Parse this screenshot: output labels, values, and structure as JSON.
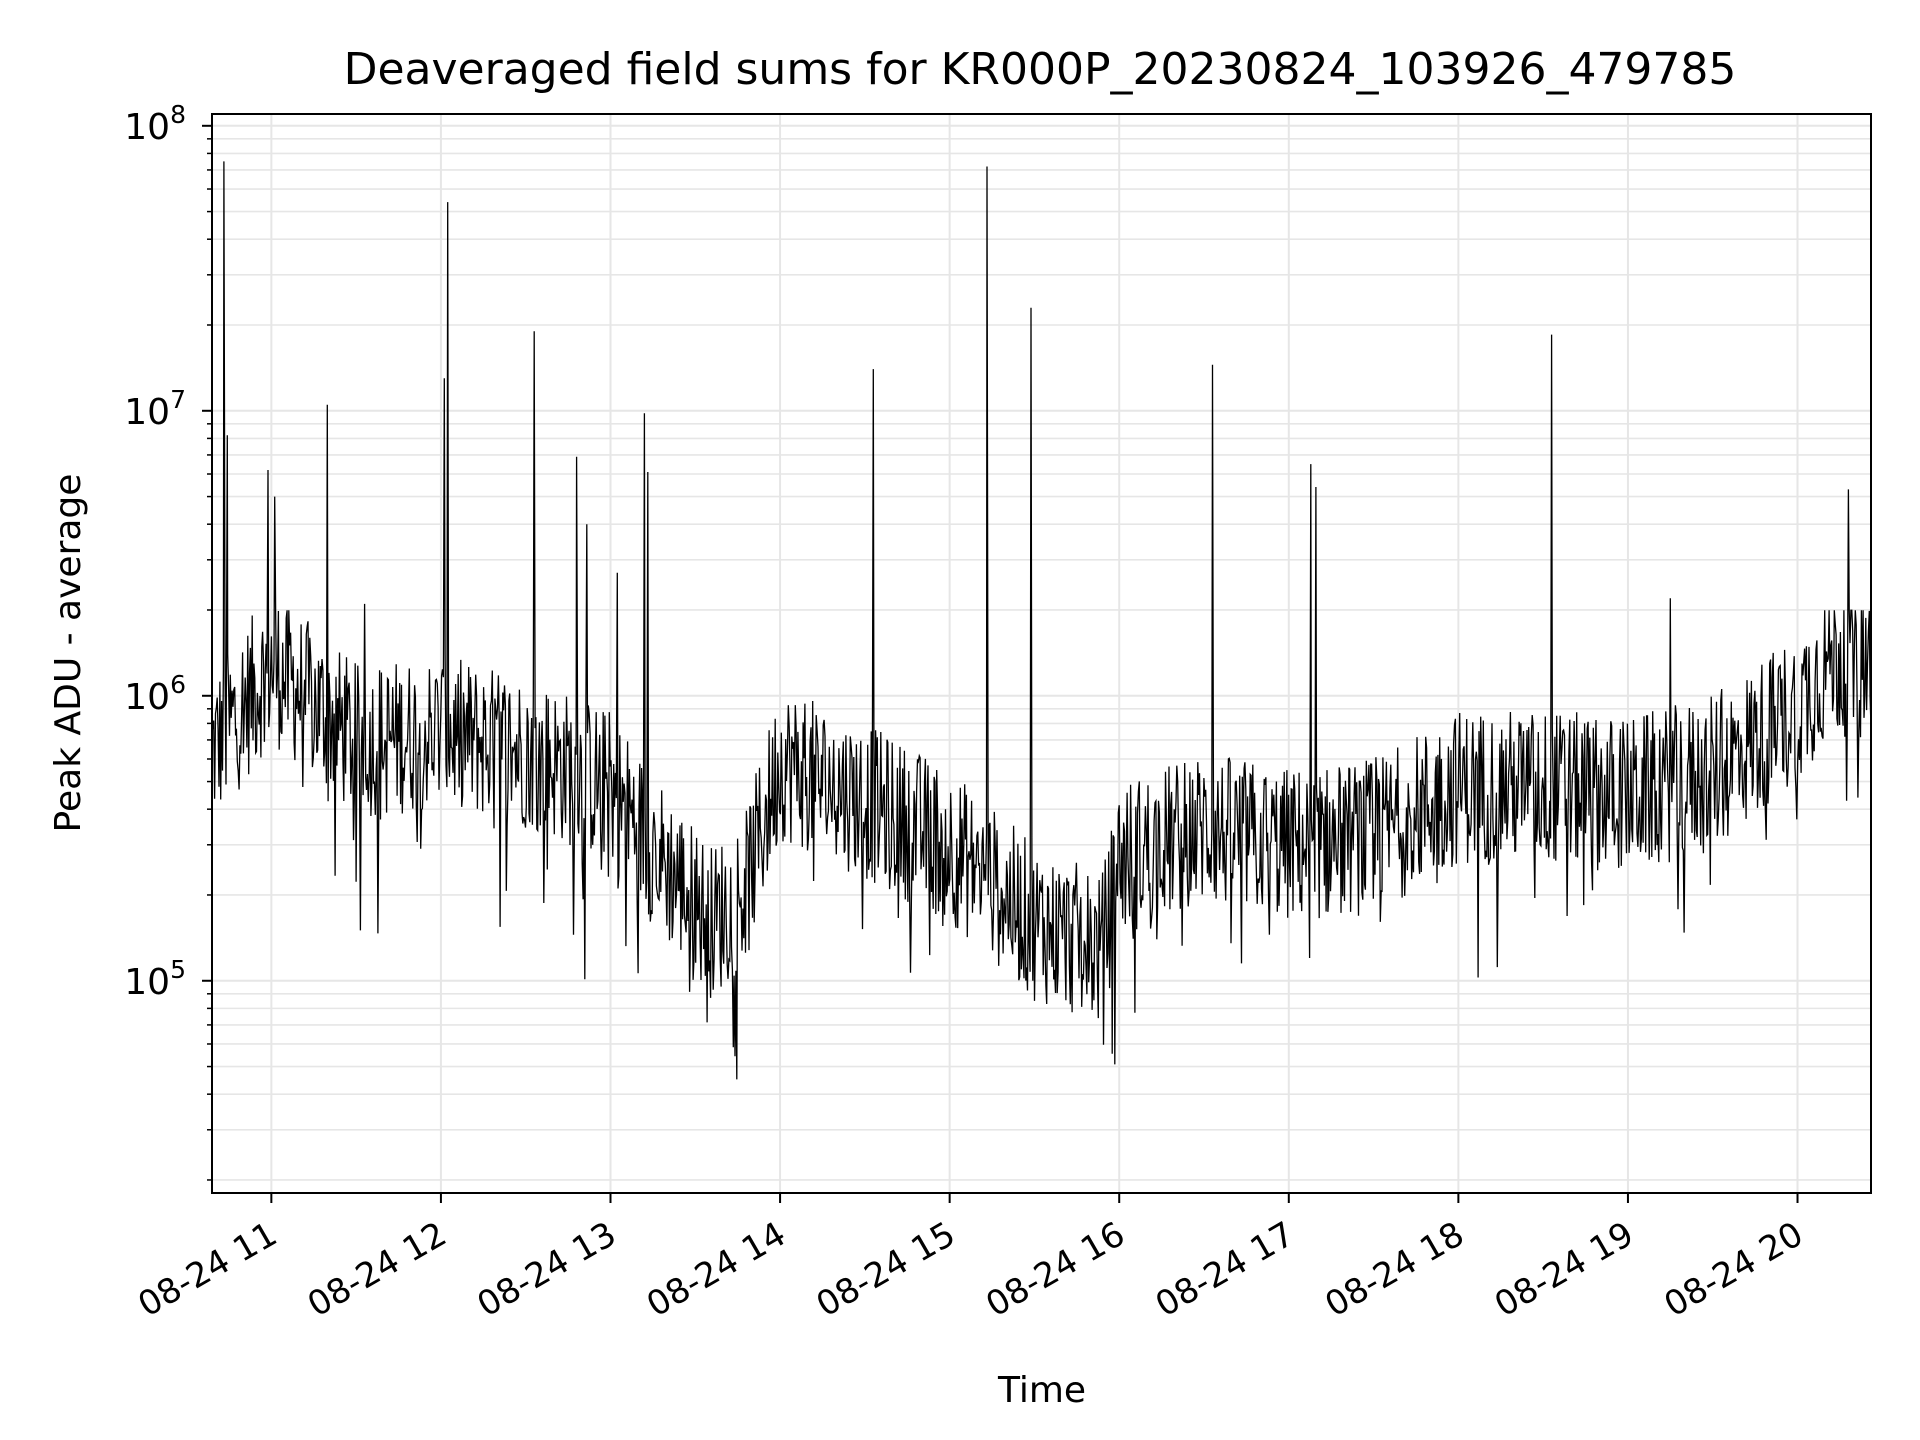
{
  "chart_data": {
    "type": "line",
    "title": "Deaveraged field sums for KR000P_20230824_103926_479785",
    "xlabel": "Time",
    "ylabel": "Peak ADU - average",
    "yscale": "log",
    "ylim": [
      18000,
      110000000
    ],
    "xlim": [
      "08-24 10:39",
      "08-24 20:26"
    ],
    "grid": "both (major and minor), light gray",
    "line_color": "#000000",
    "x_ticks": [
      "08-24 11",
      "08-24 12",
      "08-24 13",
      "08-24 14",
      "08-24 15",
      "08-24 16",
      "08-24 17",
      "08-24 18",
      "08-24 19",
      "08-24 20"
    ],
    "y_ticks": [
      {
        "value": 100000,
        "base": "10",
        "exp": "5"
      },
      {
        "value": 1000000,
        "base": "10",
        "exp": "6"
      },
      {
        "value": 10000000,
        "base": "10",
        "exp": "7"
      },
      {
        "value": 100000000,
        "base": "10",
        "exp": "8"
      }
    ],
    "series": [
      {
        "x_unit": "hours since 08-24 00:00",
        "baseline": [
          [
            10.65,
            600000
          ],
          [
            11.0,
            1200000
          ],
          [
            11.5,
            650000
          ],
          [
            12.0,
            700000
          ],
          [
            12.5,
            600000
          ],
          [
            13.0,
            450000
          ],
          [
            13.3,
            250000
          ],
          [
            13.6,
            150000
          ],
          [
            13.8,
            200000
          ],
          [
            14.0,
            550000
          ],
          [
            14.5,
            400000
          ],
          [
            15.0,
            280000
          ],
          [
            15.5,
            150000
          ],
          [
            15.9,
            120000
          ],
          [
            16.0,
            250000
          ],
          [
            16.5,
            320000
          ],
          [
            17.0,
            280000
          ],
          [
            17.5,
            300000
          ],
          [
            18.0,
            450000
          ],
          [
            18.5,
            450000
          ],
          [
            19.0,
            420000
          ],
          [
            19.5,
            500000
          ],
          [
            20.0,
            850000
          ],
          [
            20.2,
            1300000
          ],
          [
            20.43,
            1200000
          ]
        ],
        "spikes": [
          [
            10.72,
            75000000
          ],
          [
            10.74,
            8200000
          ],
          [
            10.98,
            6200000
          ],
          [
            11.02,
            5000000
          ],
          [
            11.33,
            10500000
          ],
          [
            11.55,
            2100000
          ],
          [
            12.02,
            13000000
          ],
          [
            12.04,
            54000000
          ],
          [
            12.55,
            19000000
          ],
          [
            12.8,
            6900000
          ],
          [
            12.86,
            4000000
          ],
          [
            13.04,
            2700000
          ],
          [
            13.2,
            9800000
          ],
          [
            13.22,
            6100000
          ],
          [
            14.55,
            14000000
          ],
          [
            15.22,
            72000000
          ],
          [
            15.48,
            23000000
          ],
          [
            16.55,
            14500000
          ],
          [
            17.13,
            6500000
          ],
          [
            17.16,
            5400000
          ],
          [
            18.55,
            18500000
          ],
          [
            19.25,
            2200000
          ],
          [
            20.3,
            5300000
          ]
        ]
      }
    ]
  }
}
